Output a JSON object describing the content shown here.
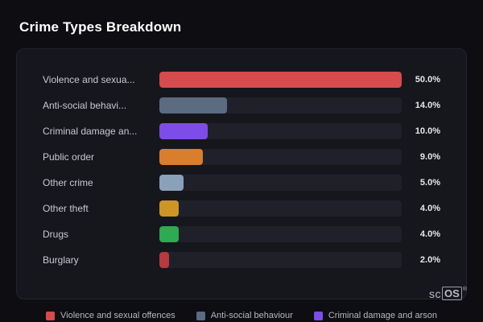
{
  "page": {
    "title": "Crime Types Breakdown"
  },
  "chart_data": {
    "type": "bar",
    "orientation": "horizontal",
    "title": "Crime Types Breakdown",
    "categories": [
      "Violence and sexual offences",
      "Anti-social behaviour",
      "Criminal damage and arson",
      "Public order",
      "Other crime",
      "Other theft",
      "Drugs",
      "Burglary"
    ],
    "values": [
      50.0,
      14.0,
      10.0,
      9.0,
      5.0,
      4.0,
      4.0,
      2.0
    ],
    "value_unit": "%",
    "xlim": [
      0,
      50
    ],
    "grid": false,
    "legend_position": "bottom"
  },
  "rows": [
    {
      "label": "Violence and sexua...",
      "value_label": "50.0%",
      "color": "#d74a4d",
      "width_pct": 100
    },
    {
      "label": "Anti-social behavi...",
      "value_label": "14.0%",
      "color": "#5b6b81",
      "width_pct": 28
    },
    {
      "label": "Criminal damage an...",
      "value_label": "10.0%",
      "color": "#7e4ce6",
      "width_pct": 20
    },
    {
      "label": "Public order",
      "value_label": "9.0%",
      "color": "#d87e2c",
      "width_pct": 18
    },
    {
      "label": "Other crime",
      "value_label": "5.0%",
      "color": "#8ba1ba",
      "width_pct": 10
    },
    {
      "label": "Other theft",
      "value_label": "4.0%",
      "color": "#cd9527",
      "width_pct": 8
    },
    {
      "label": "Drugs",
      "value_label": "4.0%",
      "color": "#2eaa52",
      "width_pct": 8
    },
    {
      "label": "Burglary",
      "value_label": "2.0%",
      "color": "#b63a3e",
      "width_pct": 4
    }
  ],
  "legend": [
    {
      "label": "Violence and sexual offences",
      "color": "#d74a4d"
    },
    {
      "label": "Anti-social behaviour",
      "color": "#5b6b81"
    },
    {
      "label": "Criminal damage and arson",
      "color": "#7e4ce6"
    }
  ],
  "brand": {
    "sc": "sc",
    "os": "OS",
    "reg": "®"
  },
  "colors": {
    "background": "#0d0d12",
    "card": "#16161d",
    "track": "#20202a",
    "text_primary": "#ffffff",
    "text_secondary": "#c8cad2"
  }
}
